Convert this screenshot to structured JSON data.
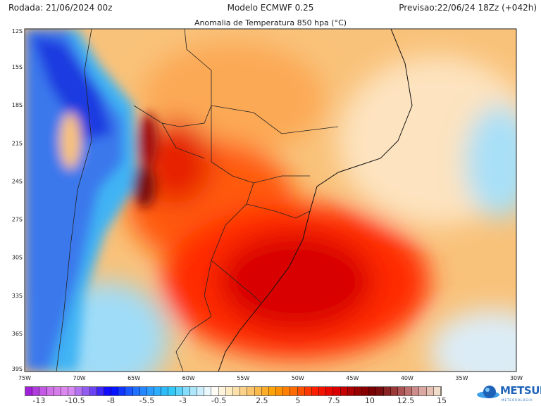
{
  "header": {
    "rodada": "Rodada: 21/06/2024 00z",
    "modelo": "Modelo ECMWF 0.25",
    "previsao": "Previsao:22/06/24 18Zz (+042h)",
    "title": "Anomalia de Temperatura 850 hpa (°C)"
  },
  "map": {
    "lat_labels": [
      "12S",
      "15S",
      "18S",
      "21S",
      "24S",
      "27S",
      "30S",
      "33S",
      "36S",
      "39S"
    ],
    "lon_labels": [
      "75W",
      "70W",
      "65W",
      "60W",
      "55W",
      "50W",
      "45W",
      "40W",
      "35W",
      "30W"
    ],
    "lat_range": [
      -39,
      -12
    ],
    "lon_range": [
      -75,
      -30
    ],
    "colors": {
      "warm_base": "#f9c27a",
      "cold": "#2a52e0",
      "hot": "#c90000",
      "extreme": "#7a0a0a"
    }
  },
  "colorbar": {
    "min": -14,
    "max": 15,
    "step": 0.5,
    "labels": [
      "-13",
      "-10.5",
      "-8",
      "-5.5",
      "-3",
      "-0.5",
      "2.5",
      "5",
      "7.5",
      "10",
      "12.5",
      "15"
    ],
    "color_stops": [
      "#a020d8",
      "#d070e8",
      "#e090f0",
      "#8050f0",
      "#0000ff",
      "#1e60ff",
      "#2aa0ff",
      "#30c8f8",
      "#a8e4fc",
      "#ffffff",
      "#fde7b8",
      "#fbc060",
      "#fda000",
      "#ff6a00",
      "#ff2000",
      "#e00000",
      "#a00000",
      "#700000",
      "#a04040",
      "#d09090",
      "#f0dcc8"
    ]
  },
  "logo": {
    "text": "METSUL",
    "subtext": "METEOROLOGIA"
  }
}
